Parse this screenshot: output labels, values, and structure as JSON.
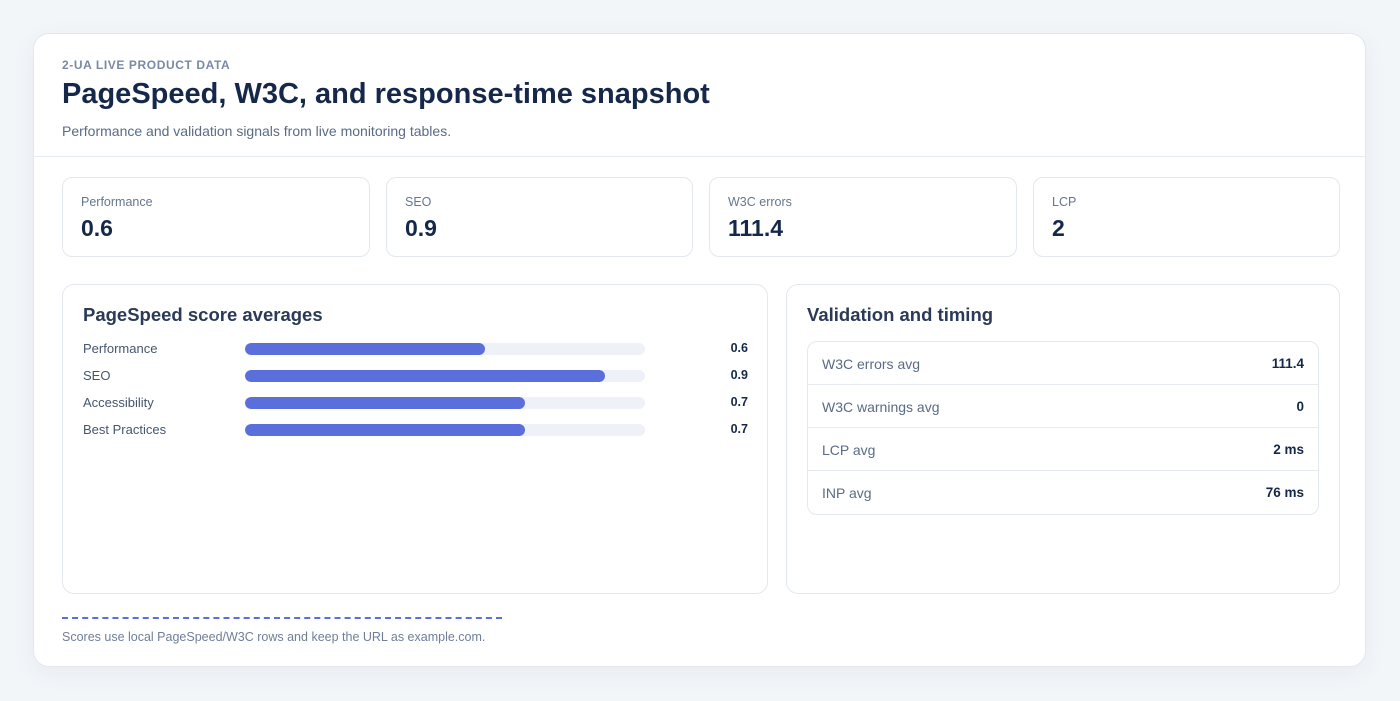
{
  "header": {
    "eyebrow": "2-UA LIVE PRODUCT DATA",
    "title": "PageSpeed, W3C, and response-time snapshot",
    "subtitle": "Performance and validation signals from live monitoring tables."
  },
  "kpis": [
    {
      "label": "Performance",
      "value": "0.6"
    },
    {
      "label": "SEO",
      "value": "0.9"
    },
    {
      "label": "W3C errors",
      "value": "111.4"
    },
    {
      "label": "LCP",
      "value": "2"
    }
  ],
  "pagespeed": {
    "title": "PageSpeed score averages",
    "max": 1,
    "rows": [
      {
        "label": "Performance",
        "value": 0.6,
        "display": "0.6"
      },
      {
        "label": "SEO",
        "value": 0.9,
        "display": "0.9"
      },
      {
        "label": "Accessibility",
        "value": 0.7,
        "display": "0.7"
      },
      {
        "label": "Best Practices",
        "value": 0.7,
        "display": "0.7"
      }
    ]
  },
  "validation": {
    "title": "Validation and timing",
    "rows": [
      {
        "label": "W3C errors avg",
        "value": "111.4"
      },
      {
        "label": "W3C warnings avg",
        "value": "0"
      },
      {
        "label": "LCP avg",
        "value": "2 ms"
      },
      {
        "label": "INP avg",
        "value": "76 ms"
      }
    ]
  },
  "footer": {
    "note": "Scores use local PageSpeed/W3C rows and keep the URL as example.com."
  },
  "colors": {
    "accent": "#5a6fdc",
    "track": "#eef1f7",
    "heading": "#16284a",
    "background": "#f3f6f9"
  }
}
